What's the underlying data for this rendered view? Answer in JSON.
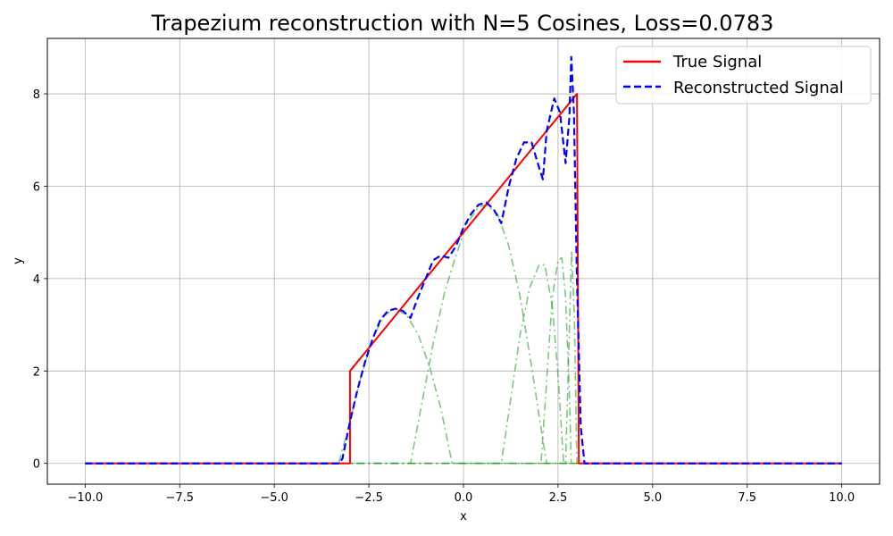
{
  "chart_data": {
    "type": "line",
    "title": "Trapezium reconstruction with N=5 Cosines, Loss=0.0783",
    "xlabel": "x",
    "ylabel": "y",
    "xlim": [
      -11,
      11
    ],
    "ylim": [
      -0.45,
      9.2
    ],
    "xticks": [
      -10,
      -7.5,
      -5,
      -2.5,
      0,
      2.5,
      5,
      7.5,
      10
    ],
    "xtick_labels": [
      "−10.0",
      "−7.5",
      "−5.0",
      "−2.5",
      "0.0",
      "2.5",
      "5.0",
      "7.5",
      "10.0"
    ],
    "yticks": [
      0,
      2,
      4,
      6,
      8
    ],
    "ytick_labels": [
      "0",
      "2",
      "4",
      "6",
      "8"
    ],
    "grid": true,
    "legend_position": "top-right",
    "series": [
      {
        "name": "True Signal",
        "color": "#ff0000",
        "style": "solid",
        "points": [
          [
            -10,
            0
          ],
          [
            -3,
            0
          ],
          [
            -3,
            2
          ],
          [
            3,
            8
          ],
          [
            3.05,
            0
          ],
          [
            10,
            0
          ]
        ]
      },
      {
        "name": "Reconstructed Signal",
        "color": "#0000ff",
        "style": "dashed",
        "points": [
          [
            -10,
            0
          ],
          [
            -3.3,
            0
          ],
          [
            -3.2,
            0.1
          ],
          [
            -3.0,
            0.9
          ],
          [
            -2.8,
            1.6
          ],
          [
            -2.6,
            2.2
          ],
          [
            -2.4,
            2.7
          ],
          [
            -2.2,
            3.1
          ],
          [
            -2.0,
            3.3
          ],
          [
            -1.8,
            3.35
          ],
          [
            -1.6,
            3.3
          ],
          [
            -1.4,
            3.15
          ],
          [
            -1.2,
            3.6
          ],
          [
            -1.0,
            4.0
          ],
          [
            -0.8,
            4.4
          ],
          [
            -0.6,
            4.5
          ],
          [
            -0.4,
            4.45
          ],
          [
            -0.2,
            4.7
          ],
          [
            0.0,
            5.1
          ],
          [
            0.2,
            5.4
          ],
          [
            0.4,
            5.6
          ],
          [
            0.6,
            5.65
          ],
          [
            0.8,
            5.5
          ],
          [
            1.0,
            5.2
          ],
          [
            1.2,
            6.0
          ],
          [
            1.4,
            6.6
          ],
          [
            1.6,
            6.95
          ],
          [
            1.8,
            6.95
          ],
          [
            2.0,
            6.4
          ],
          [
            2.1,
            6.15
          ],
          [
            2.2,
            7.2
          ],
          [
            2.4,
            7.9
          ],
          [
            2.55,
            7.6
          ],
          [
            2.7,
            6.5
          ],
          [
            2.8,
            7.5
          ],
          [
            2.85,
            8.8
          ],
          [
            2.92,
            7.6
          ],
          [
            3.0,
            4.0
          ],
          [
            3.1,
            0.8
          ],
          [
            3.2,
            0
          ],
          [
            10,
            0
          ]
        ]
      },
      {
        "name": "",
        "color": "#2ca02c",
        "style": "dashdot",
        "points": [
          [
            -10,
            0
          ],
          [
            -3.3,
            0
          ],
          [
            -3.0,
            0.9
          ],
          [
            -2.7,
            1.9
          ],
          [
            -2.4,
            2.7
          ],
          [
            -2.1,
            3.2
          ],
          [
            -1.8,
            3.35
          ],
          [
            -1.5,
            3.2
          ],
          [
            -1.2,
            2.8
          ],
          [
            -0.9,
            2.1
          ],
          [
            -0.6,
            1.2
          ],
          [
            -0.3,
            0
          ],
          [
            10,
            0
          ]
        ]
      },
      {
        "name": "",
        "color": "#2ca02c",
        "style": "dashdot",
        "points": [
          [
            -10,
            0
          ],
          [
            -1.4,
            0
          ],
          [
            -1.1,
            1.3
          ],
          [
            -0.8,
            2.6
          ],
          [
            -0.5,
            3.7
          ],
          [
            -0.2,
            4.5
          ],
          [
            0.1,
            5.2
          ],
          [
            0.4,
            5.55
          ],
          [
            0.6,
            5.6
          ],
          [
            0.9,
            5.4
          ],
          [
            1.2,
            4.7
          ],
          [
            1.5,
            3.6
          ],
          [
            1.8,
            2.1
          ],
          [
            2.1,
            0.5
          ],
          [
            2.2,
            0
          ],
          [
            10,
            0
          ]
        ]
      },
      {
        "name": "",
        "color": "#2ca02c",
        "style": "dashdot",
        "points": [
          [
            -10,
            0
          ],
          [
            1.0,
            0
          ],
          [
            1.25,
            1.4
          ],
          [
            1.5,
            2.8
          ],
          [
            1.75,
            3.8
          ],
          [
            2.0,
            4.3
          ],
          [
            2.15,
            4.3
          ],
          [
            2.35,
            3.4
          ],
          [
            2.5,
            1.9
          ],
          [
            2.6,
            0.6
          ],
          [
            2.65,
            0
          ],
          [
            10,
            0
          ]
        ]
      },
      {
        "name": "",
        "color": "#2ca02c",
        "style": "dashdot",
        "points": [
          [
            -10,
            0
          ],
          [
            2.05,
            0
          ],
          [
            2.2,
            1.8
          ],
          [
            2.35,
            3.6
          ],
          [
            2.5,
            4.4
          ],
          [
            2.6,
            4.45
          ],
          [
            2.7,
            3.6
          ],
          [
            2.8,
            1.5
          ],
          [
            2.85,
            0
          ],
          [
            10,
            0
          ]
        ]
      },
      {
        "name": "",
        "color": "#2ca02c",
        "style": "dashdot",
        "points": [
          [
            -10,
            0
          ],
          [
            2.7,
            0
          ],
          [
            2.8,
            2.9
          ],
          [
            2.86,
            4.6
          ],
          [
            2.93,
            3.2
          ],
          [
            3.0,
            0
          ],
          [
            10,
            0
          ]
        ]
      }
    ]
  }
}
